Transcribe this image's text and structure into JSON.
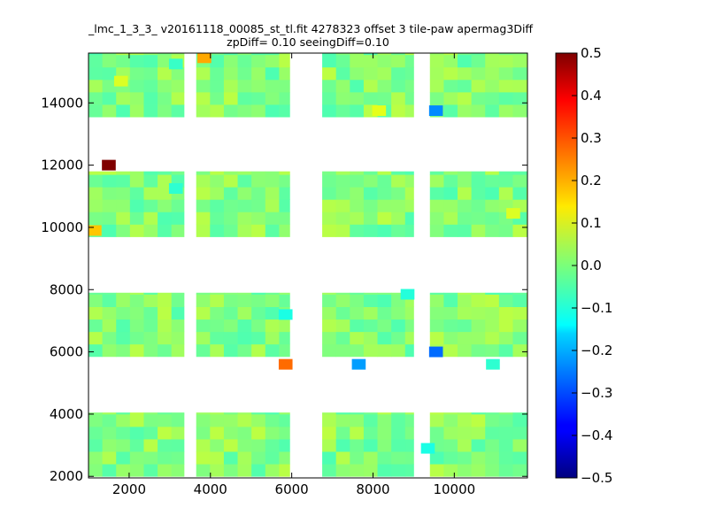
{
  "chart_data": {
    "type": "heatmap",
    "title": "_lmc_1_3_3_ v20161118_00085_st_tl.fit 4278323 offset 3 tile-paw apermag3Diff",
    "subtitle": "zpDiff= 0.10 seeingDiff=0.10",
    "xlabel": "",
    "ylabel": "",
    "xlim": [
      1000,
      11800
    ],
    "ylim": [
      1950,
      15600
    ],
    "xticks": [
      "2000",
      "4000",
      "6000",
      "8000",
      "10000"
    ],
    "yticks": [
      "2000",
      "4000",
      "6000",
      "8000",
      "10000",
      "12000",
      "14000"
    ],
    "colorbar": {
      "range": [
        -0.5,
        0.5
      ],
      "ticks": [
        "0.5",
        "0.4",
        "0.3",
        "0.2",
        "0.1",
        "0.0",
        "−0.1",
        "−0.2",
        "−0.3",
        "−0.4",
        "−0.5"
      ],
      "colormap": "jet"
    },
    "grid": false,
    "tile_columns_x": [
      [
        1000,
        3350
      ],
      [
        3650,
        5950
      ],
      [
        6750,
        9000
      ],
      [
        9400,
        11800
      ]
    ],
    "tile_rows_y": [
      [
        2000,
        4050
      ],
      [
        5850,
        7900
      ],
      [
        9700,
        11800
      ],
      [
        13550,
        15600
      ]
    ],
    "cell_size": [
      340,
      400
    ],
    "background_value": 0.0,
    "outliers": [
      {
        "x": 1500,
        "y": 12000,
        "value": 0.5
      },
      {
        "x": 1150,
        "y": 9900,
        "value": 0.18
      },
      {
        "x": 3850,
        "y": 15450,
        "value": 0.21
      },
      {
        "x": 5850,
        "y": 5600,
        "value": 0.27
      },
      {
        "x": 7650,
        "y": 5600,
        "value": -0.22
      },
      {
        "x": 9550,
        "y": 13750,
        "value": -0.24
      },
      {
        "x": 9550,
        "y": 6000,
        "value": -0.27
      },
      {
        "x": 3150,
        "y": 11250,
        "value": -0.08
      },
      {
        "x": 3150,
        "y": 15250,
        "value": -0.07
      },
      {
        "x": 9350,
        "y": 2900,
        "value": -0.1
      },
      {
        "x": 8850,
        "y": 7850,
        "value": -0.09
      },
      {
        "x": 5850,
        "y": 7200,
        "value": -0.1
      },
      {
        "x": 10950,
        "y": 5600,
        "value": -0.08
      },
      {
        "x": 8150,
        "y": 13750,
        "value": 0.1
      },
      {
        "x": 1800,
        "y": 14700,
        "value": 0.09
      },
      {
        "x": 11450,
        "y": 10450,
        "value": 0.09
      }
    ]
  }
}
